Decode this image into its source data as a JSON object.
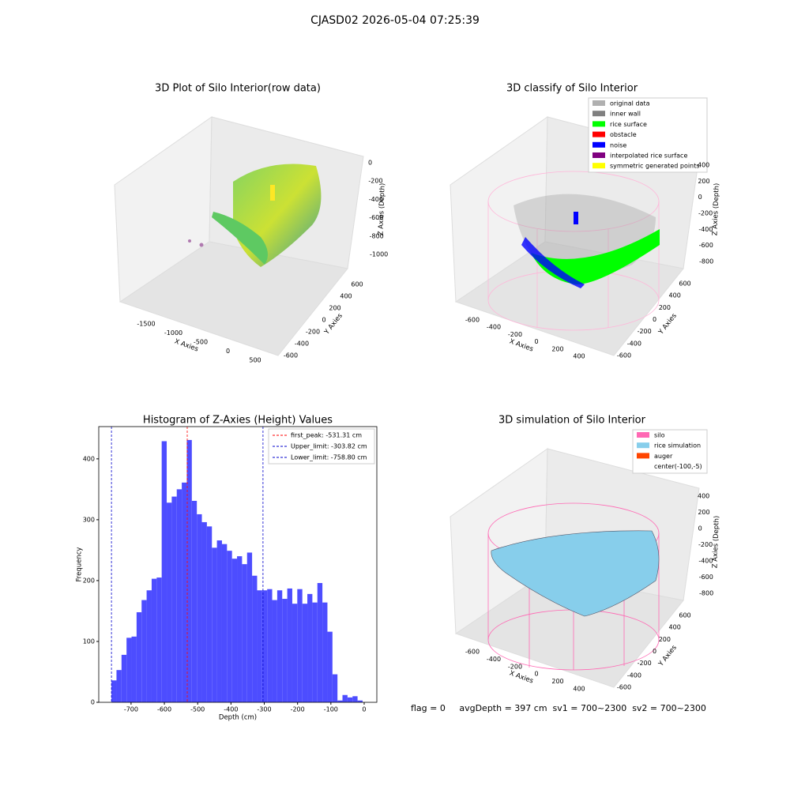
{
  "title": "CJASD02 2026-05-04 07:25:39",
  "status": "flag = 0     avgDepth = 397 cm  sv1 = 700~2300  sv2 = 700~2300",
  "chart_data": [
    {
      "type": "scatter3d",
      "title": "3D Plot of Silo Interior(row data)",
      "xlabel": "X Axies",
      "ylabel": "Y Axies",
      "zlabel": "Z Axies (Depth)",
      "xticks": [
        -1500,
        -1000,
        -500,
        0,
        500
      ],
      "yticks": [
        -600,
        -400,
        -200,
        0,
        200,
        400,
        600
      ],
      "zticks": [
        0,
        -200,
        -400,
        -600,
        -800,
        -1000
      ]
    },
    {
      "type": "scatter3d",
      "title": "3D classify of Silo Interior",
      "xlabel": "X Axies",
      "ylabel": "Y Axies",
      "zlabel": "Z Axies (Depth)",
      "xticks": [
        -600,
        -400,
        -200,
        0,
        200,
        400
      ],
      "yticks": [
        -600,
        -400,
        -200,
        0,
        200,
        400,
        600
      ],
      "zticks": [
        400,
        200,
        0,
        -200,
        -400,
        -600,
        -800
      ],
      "legend": [
        {
          "name": "original data",
          "color": "#b0b0b0"
        },
        {
          "name": "inner wall",
          "color": "#808080"
        },
        {
          "name": "rice surface",
          "color": "#00ff00"
        },
        {
          "name": "obstacle",
          "color": "#ff0000"
        },
        {
          "name": "noise",
          "color": "#0000ff"
        },
        {
          "name": "interpolated rice surface",
          "color": "#800080"
        },
        {
          "name": "symmetric generated points",
          "color": "#ffff00"
        }
      ]
    },
    {
      "type": "histogram",
      "title": "Histogram of Z-Axies (Height) Values",
      "xlabel": "Depth (cm)",
      "ylabel": "Frequency",
      "color": "#4d4dff",
      "bins": [
        -758.8,
        -743.72,
        -728.64,
        -713.56,
        -698.48,
        -683.4,
        -668.32,
        -653.24,
        -638.16,
        -623.08,
        -608.0,
        -592.92,
        -577.84,
        -562.76,
        -547.68,
        -532.6,
        -517.52,
        -502.44,
        -487.36,
        -472.28,
        -457.2,
        -442.12,
        -427.04,
        -411.96,
        -396.88,
        -381.8,
        -366.72,
        -351.64,
        -336.56,
        -321.48,
        -306.4,
        -291.32,
        -276.24,
        -261.16,
        -246.08,
        -231.0,
        -215.92,
        -200.84,
        -185.76,
        -170.68,
        -155.6,
        -140.52,
        -125.44,
        -110.36,
        -95.28,
        -80.2,
        -65.12,
        -50.04,
        -34.96,
        -19.88,
        -4.8
      ],
      "values": [
        36,
        53,
        78,
        106,
        108,
        148,
        168,
        184,
        203,
        205,
        429,
        328,
        338,
        350,
        361,
        431,
        331,
        309,
        296,
        289,
        254,
        266,
        260,
        249,
        236,
        240,
        227,
        246,
        208,
        184,
        184,
        186,
        168,
        184,
        170,
        187,
        162,
        186,
        162,
        178,
        164,
        196,
        164,
        116,
        46,
        3,
        12,
        8,
        10,
        3
      ],
      "xlim": [
        -797,
        38
      ],
      "ylim": [
        0,
        453
      ],
      "xticks": [
        -700,
        -600,
        -500,
        -400,
        -300,
        -200,
        -100,
        0
      ],
      "yticks": [
        0,
        100,
        200,
        300,
        400
      ],
      "lines": [
        {
          "name": "first_peak: -531.31 cm",
          "value": -531.31,
          "color": "#ff0000"
        },
        {
          "name": "Upper_limit: -303.82 cm",
          "value": -303.82,
          "color": "#0000cc"
        },
        {
          "name": "Lower_limit: -758.80 cm",
          "value": -758.8,
          "color": "#0000cc"
        }
      ]
    },
    {
      "type": "surface3d",
      "title": "3D simulation of Silo Interior",
      "xlabel": "X Axies",
      "ylabel": "Y Axies",
      "zlabel": "Z Axies (Depth)",
      "xticks": [
        -600,
        -400,
        -200,
        0,
        200,
        400
      ],
      "yticks": [
        -600,
        -400,
        -200,
        0,
        200,
        400,
        600
      ],
      "zticks": [
        400,
        200,
        0,
        -200,
        -400,
        -600,
        -800
      ],
      "legend": [
        {
          "name": "silo",
          "color": "#ff69b4"
        },
        {
          "name": "rice simulation",
          "color": "#87ceeb"
        },
        {
          "name": "auger",
          "color": "#ff4500"
        },
        {
          "name": "center(-100,-5)",
          "color": "#ffffff"
        }
      ]
    }
  ]
}
